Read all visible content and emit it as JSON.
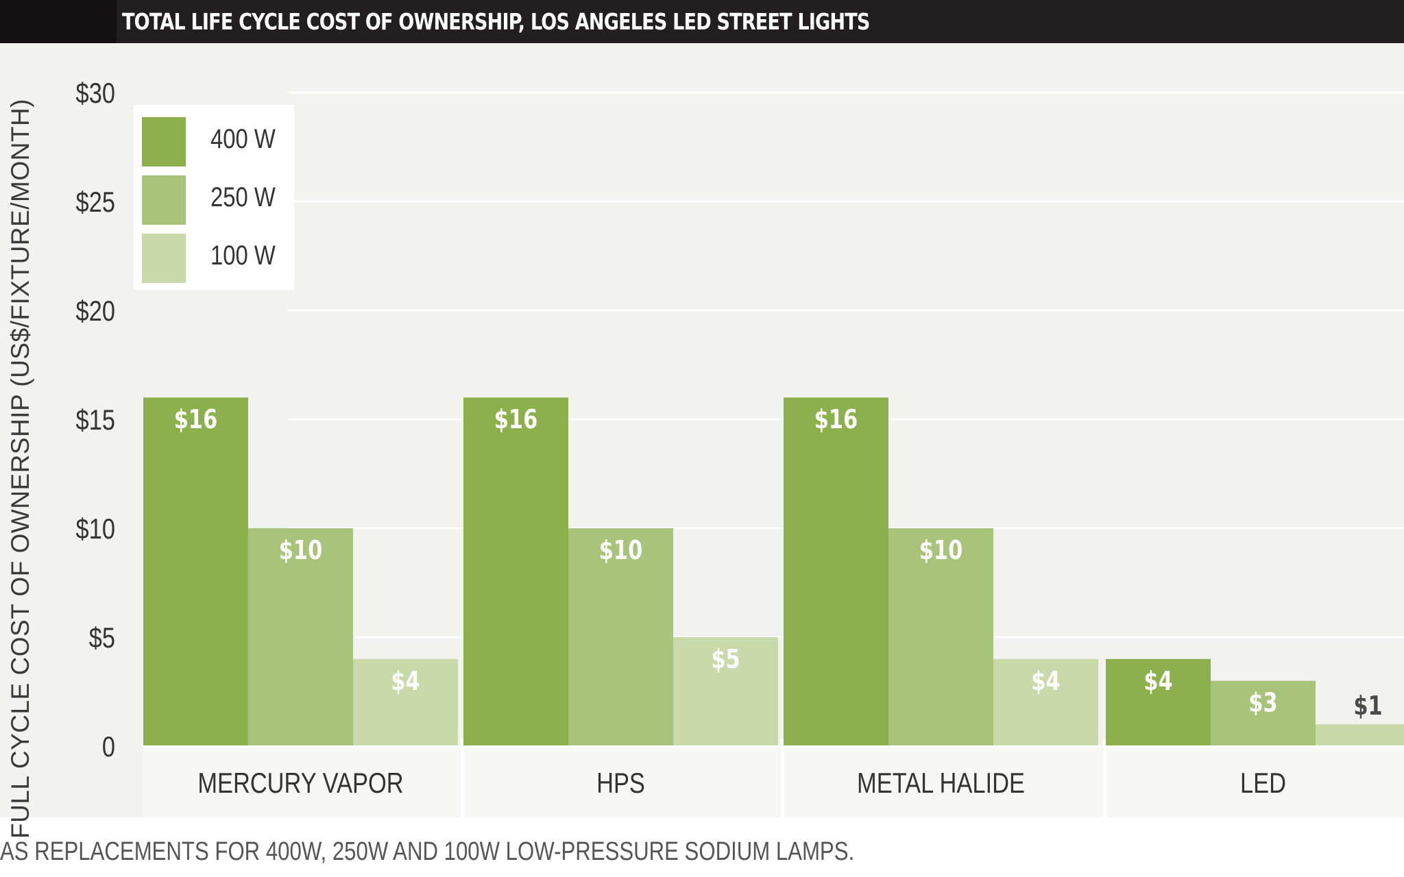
{
  "colors": {
    "series_400": "#8bb04c",
    "series_250": "#a8c47a",
    "series_100": "#c9d9a9",
    "label_on_bar": "#ffffff",
    "label_above_bar": "#4a4a4a",
    "title_bg": "#231f20"
  },
  "chart_data": {
    "type": "bar",
    "title": "TOTAL LIFE CYCLE COST OF OWNERSHIP, LOS ANGELES LED STREET LIGHTS",
    "ylabel": "FULL CYCLE COST OF OWNERSHIP (US$/FIXTURE/MONTH)",
    "xlabel": "",
    "ylim": [
      0,
      30
    ],
    "yticks": [
      0,
      5,
      10,
      15,
      20,
      25,
      30
    ],
    "ytick_labels": [
      "0",
      "$5",
      "$10",
      "$15",
      "$20",
      "$25",
      "$30"
    ],
    "grid": true,
    "legend_position": "top-left",
    "categories": [
      "MERCURY VAPOR",
      "HPS",
      "METAL HALIDE",
      "LED"
    ],
    "series": [
      {
        "name": "400 W",
        "values": [
          16,
          16,
          16,
          4
        ],
        "labels": [
          "$16",
          "$16",
          "$16",
          "$4"
        ]
      },
      {
        "name": "250 W",
        "values": [
          10,
          10,
          10,
          3
        ],
        "labels": [
          "$10",
          "$10",
          "$10",
          "$3"
        ]
      },
      {
        "name": "100 W",
        "values": [
          4,
          5,
          4,
          1
        ],
        "labels": [
          "$4",
          "$5",
          "$4",
          "$1"
        ]
      }
    ]
  },
  "footnote": "AS REPLACEMENTS FOR 400W, 250W AND 100W LOW-PRESSURE SODIUM LAMPS."
}
